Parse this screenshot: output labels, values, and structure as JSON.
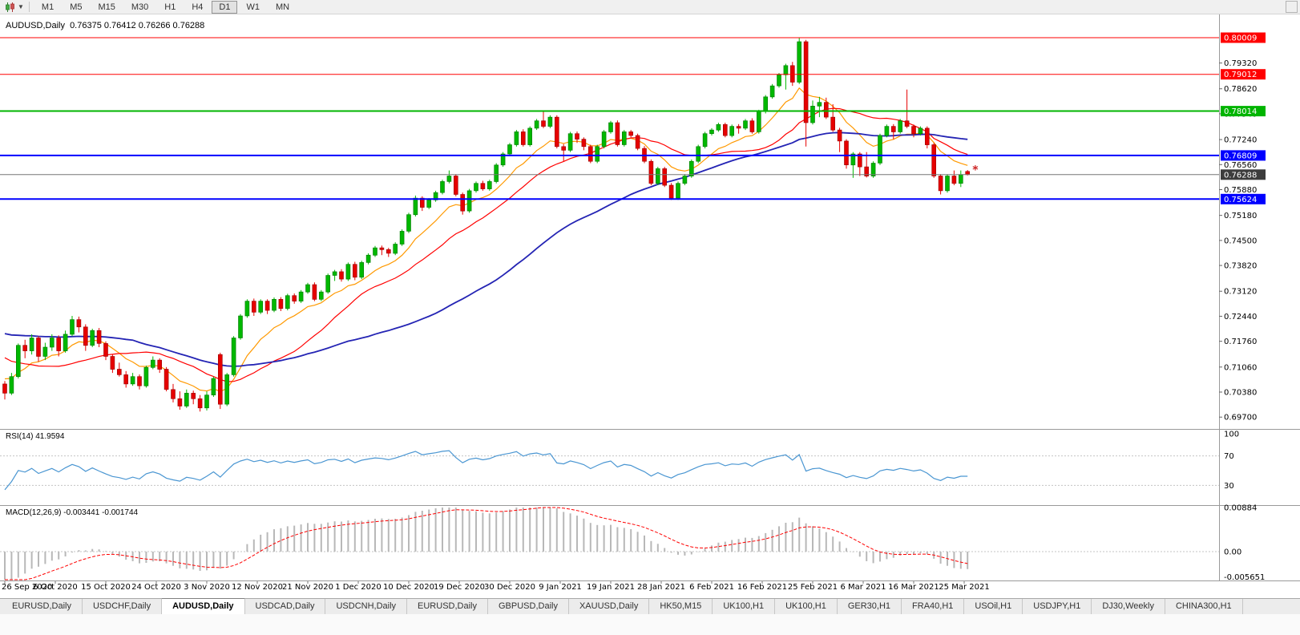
{
  "toolbar": {
    "timeframes": [
      "M1",
      "M5",
      "M15",
      "M30",
      "H1",
      "H4",
      "D1",
      "W1",
      "MN"
    ],
    "active_timeframe": "D1"
  },
  "chart_header": {
    "title": "AUDUSD,Daily  0.76375 0.76412 0.76266 0.76288"
  },
  "indicator_labels": {
    "rsi": "RSI(14) 41.9594",
    "macd": "MACD(12,26,9) -0.003441 -0.001744"
  },
  "tabs": {
    "items": [
      "EURUSD,Daily",
      "USDCHF,Daily",
      "AUDUSD,Daily",
      "USDCAD,Daily",
      "USDCNH,Daily",
      "EURUSD,Daily",
      "GBPUSD,Daily",
      "XAUUSD,Daily",
      "HK50,M15",
      "UK100,H1",
      "UK100,H1",
      "GER30,H1",
      "FRA40,H1",
      "USOil,H1",
      "USDJPY,H1",
      "DJ30,Weekly",
      "CHINA300,H1"
    ],
    "active_index": 2
  },
  "chart_data": {
    "type": "candlestick",
    "symbol": "AUDUSD",
    "timeframe": "Daily",
    "ylim": [
      0.694,
      0.8064
    ],
    "y_tick_labels": [
      "0.79320",
      "0.78620",
      "0.77940",
      "0.77240",
      "0.76560",
      "0.75880",
      "0.75180",
      "0.74500",
      "0.73820",
      "0.73120",
      "0.72440",
      "0.71760",
      "0.71060",
      "0.70380",
      "0.69700"
    ],
    "x_tick_labels": [
      "26 Sep 2020",
      "6 Oct 2020",
      "15 Oct 2020",
      "24 Oct 2020",
      "3 Nov 2020",
      "12 Nov 2020",
      "21 Nov 2020",
      "1 Dec 2020",
      "10 Dec 2020",
      "19 Dec 2020",
      "30 Dec 2020",
      "9 Jan 2021",
      "19 Jan 2021",
      "28 Jan 2021",
      "6 Feb 2021",
      "16 Feb 2021",
      "25 Feb 2021",
      "6 Mar 2021",
      "16 Mar 2021",
      "25 Mar 2021"
    ],
    "horizontal_lines": [
      {
        "price": "0.80009",
        "color": "#ff0000",
        "width": 1
      },
      {
        "price": "0.79012",
        "color": "#ff0000",
        "width": 1
      },
      {
        "price": "0.78014",
        "color": "#00b400",
        "width": 2
      },
      {
        "price": "0.76809",
        "color": "#0000ff",
        "width": 2
      },
      {
        "price": "0.75624",
        "color": "#0000ff",
        "width": 2
      }
    ],
    "current_price": "0.76288",
    "current_price_label_bg": "#3c3c3c",
    "marker": {
      "text": "*",
      "color": "#cc2222",
      "price": 0.764
    },
    "bull_color": "#00b800",
    "bear_color": "#e60000",
    "moving_averages": [
      {
        "type": "ema",
        "period": 10,
        "color": "#ff9900"
      },
      {
        "type": "sma",
        "period": 20,
        "color": "#ff0000"
      },
      {
        "type": "sma",
        "period": 50,
        "color": "#2424b4"
      }
    ],
    "rsi": {
      "period": 14,
      "levels": [
        "100",
        "70",
        "30"
      ],
      "line_color": "#4a96d2"
    },
    "macd": {
      "fast": 12,
      "slow": 26,
      "signal": 9,
      "y_tick_labels": [
        "0.00884",
        "0.00",
        "-0.005651"
      ],
      "hist_color": "#b8b8b8",
      "signal_color": "#ff0000"
    },
    "prehistory_closes": [
      0.7368,
      0.7372,
      0.7345,
      0.7315,
      0.7332,
      0.7302,
      0.7282,
      0.7296,
      0.7312,
      0.7288,
      0.7262,
      0.7272,
      0.7242,
      0.7216,
      0.7232,
      0.7202,
      0.7172,
      0.7186,
      0.7156,
      0.7132,
      0.7146,
      0.7112,
      0.7086,
      0.7102,
      0.7072,
      0.7052,
      0.7066,
      0.7042,
      0.7056,
      0.7048
    ],
    "ohlc": [
      [
        0.706,
        0.7068,
        0.7018,
        0.7035
      ],
      [
        0.7035,
        0.709,
        0.703,
        0.708
      ],
      [
        0.708,
        0.717,
        0.7075,
        0.7165
      ],
      [
        0.7165,
        0.718,
        0.713,
        0.715
      ],
      [
        0.715,
        0.7195,
        0.714,
        0.7185
      ],
      [
        0.7185,
        0.719,
        0.712,
        0.7135
      ],
      [
        0.7135,
        0.7172,
        0.7125,
        0.716
      ],
      [
        0.716,
        0.7195,
        0.715,
        0.7185
      ],
      [
        0.7185,
        0.7192,
        0.7135,
        0.715
      ],
      [
        0.715,
        0.7205,
        0.7145,
        0.7195
      ],
      [
        0.7195,
        0.7245,
        0.719,
        0.7235
      ],
      [
        0.7235,
        0.7243,
        0.72,
        0.7215
      ],
      [
        0.7215,
        0.7222,
        0.715,
        0.7165
      ],
      [
        0.7165,
        0.721,
        0.716,
        0.7205
      ],
      [
        0.7205,
        0.7212,
        0.716,
        0.717
      ],
      [
        0.717,
        0.7176,
        0.7125,
        0.7135
      ],
      [
        0.7135,
        0.714,
        0.709,
        0.71
      ],
      [
        0.71,
        0.7118,
        0.708,
        0.7085
      ],
      [
        0.7085,
        0.7095,
        0.705,
        0.706
      ],
      [
        0.706,
        0.709,
        0.7055,
        0.708
      ],
      [
        0.708,
        0.7086,
        0.7045,
        0.7055
      ],
      [
        0.7055,
        0.711,
        0.705,
        0.7105
      ],
      [
        0.7105,
        0.7135,
        0.71,
        0.7125
      ],
      [
        0.7125,
        0.713,
        0.709,
        0.71
      ],
      [
        0.71,
        0.7106,
        0.704,
        0.7045
      ],
      [
        0.7045,
        0.706,
        0.701,
        0.702
      ],
      [
        0.702,
        0.704,
        0.699,
        0.7
      ],
      [
        0.7,
        0.7045,
        0.6995,
        0.7035
      ],
      [
        0.7035,
        0.7042,
        0.7005,
        0.702
      ],
      [
        0.702,
        0.703,
        0.6985,
        0.6995
      ],
      [
        0.6995,
        0.704,
        0.6988,
        0.703
      ],
      [
        0.703,
        0.708,
        0.7025,
        0.7075
      ],
      [
        0.714,
        0.7145,
        0.6992,
        0.7005
      ],
      [
        0.7005,
        0.709,
        0.7,
        0.7085
      ],
      [
        0.7085,
        0.719,
        0.708,
        0.7185
      ],
      [
        0.7185,
        0.725,
        0.718,
        0.7245
      ],
      [
        0.7245,
        0.729,
        0.724,
        0.7285
      ],
      [
        0.7285,
        0.7292,
        0.7245,
        0.7255
      ],
      [
        0.7255,
        0.729,
        0.725,
        0.7285
      ],
      [
        0.7285,
        0.729,
        0.725,
        0.726
      ],
      [
        0.726,
        0.7295,
        0.7255,
        0.729
      ],
      [
        0.729,
        0.7296,
        0.7258,
        0.7265
      ],
      [
        0.7265,
        0.7305,
        0.726,
        0.73
      ],
      [
        0.73,
        0.7306,
        0.7278,
        0.7285
      ],
      [
        0.7285,
        0.7315,
        0.728,
        0.731
      ],
      [
        0.731,
        0.7335,
        0.7305,
        0.733
      ],
      [
        0.733,
        0.7336,
        0.7285,
        0.729
      ],
      [
        0.729,
        0.7315,
        0.7285,
        0.731
      ],
      [
        0.731,
        0.736,
        0.7305,
        0.7355
      ],
      [
        0.7355,
        0.737,
        0.734,
        0.7365
      ],
      [
        0.7365,
        0.7372,
        0.7338,
        0.7345
      ],
      [
        0.7345,
        0.739,
        0.734,
        0.7385
      ],
      [
        0.7385,
        0.7392,
        0.7342,
        0.735
      ],
      [
        0.735,
        0.7395,
        0.7345,
        0.739
      ],
      [
        0.739,
        0.7415,
        0.7385,
        0.741
      ],
      [
        0.741,
        0.7435,
        0.7405,
        0.743
      ],
      [
        0.743,
        0.7436,
        0.741,
        0.7425
      ],
      [
        0.7425,
        0.743,
        0.7405,
        0.7415
      ],
      [
        0.7415,
        0.7445,
        0.741,
        0.744
      ],
      [
        0.744,
        0.748,
        0.7435,
        0.7475
      ],
      [
        0.7475,
        0.7525,
        0.747,
        0.752
      ],
      [
        0.752,
        0.7572,
        0.7515,
        0.7565
      ],
      [
        0.7565,
        0.757,
        0.753,
        0.754
      ],
      [
        0.754,
        0.7565,
        0.7535,
        0.756
      ],
      [
        0.756,
        0.7585,
        0.7555,
        0.758
      ],
      [
        0.758,
        0.7615,
        0.7575,
        0.761
      ],
      [
        0.761,
        0.764,
        0.7605,
        0.7625
      ],
      [
        0.7625,
        0.763,
        0.757,
        0.7575
      ],
      [
        0.7575,
        0.758,
        0.752,
        0.753
      ],
      [
        0.753,
        0.759,
        0.7525,
        0.7585
      ],
      [
        0.7585,
        0.761,
        0.758,
        0.7605
      ],
      [
        0.7605,
        0.7612,
        0.7585,
        0.759
      ],
      [
        0.759,
        0.7615,
        0.7585,
        0.761
      ],
      [
        0.761,
        0.766,
        0.7605,
        0.7655
      ],
      [
        0.7655,
        0.769,
        0.765,
        0.7685
      ],
      [
        0.7685,
        0.7715,
        0.768,
        0.771
      ],
      [
        0.771,
        0.775,
        0.7705,
        0.7745
      ],
      [
        0.7745,
        0.7752,
        0.7705,
        0.771
      ],
      [
        0.771,
        0.776,
        0.7705,
        0.7755
      ],
      [
        0.7755,
        0.778,
        0.775,
        0.7775
      ],
      [
        0.7775,
        0.78,
        0.7755,
        0.776
      ],
      [
        0.776,
        0.779,
        0.7755,
        0.7785
      ],
      [
        0.7785,
        0.779,
        0.77,
        0.7705
      ],
      [
        0.7705,
        0.7712,
        0.7665,
        0.7695
      ],
      [
        0.7695,
        0.7745,
        0.769,
        0.774
      ],
      [
        0.774,
        0.7746,
        0.7715,
        0.7725
      ],
      [
        0.7725,
        0.773,
        0.7695,
        0.7705
      ],
      [
        0.7705,
        0.771,
        0.766,
        0.7665
      ],
      [
        0.7665,
        0.771,
        0.766,
        0.7705
      ],
      [
        0.7705,
        0.775,
        0.77,
        0.7745
      ],
      [
        0.7745,
        0.7775,
        0.774,
        0.777
      ],
      [
        0.777,
        0.7776,
        0.7705,
        0.771
      ],
      [
        0.771,
        0.775,
        0.7705,
        0.7745
      ],
      [
        0.7745,
        0.775,
        0.773,
        0.7735
      ],
      [
        0.7735,
        0.774,
        0.7695,
        0.77
      ],
      [
        0.77,
        0.7706,
        0.766,
        0.7665
      ],
      [
        0.7665,
        0.767,
        0.76,
        0.7605
      ],
      [
        0.7605,
        0.765,
        0.76,
        0.7645
      ],
      [
        0.7645,
        0.765,
        0.7595,
        0.76
      ],
      [
        0.76,
        0.7606,
        0.756,
        0.7565
      ],
      [
        0.7565,
        0.761,
        0.756,
        0.7605
      ],
      [
        0.7605,
        0.763,
        0.76,
        0.7625
      ],
      [
        0.7625,
        0.767,
        0.762,
        0.7665
      ],
      [
        0.7665,
        0.771,
        0.766,
        0.7705
      ],
      [
        0.7705,
        0.7745,
        0.77,
        0.774
      ],
      [
        0.774,
        0.7755,
        0.7735,
        0.775
      ],
      [
        0.775,
        0.777,
        0.7745,
        0.7765
      ],
      [
        0.7765,
        0.777,
        0.773,
        0.7735
      ],
      [
        0.7735,
        0.7765,
        0.773,
        0.776
      ],
      [
        0.776,
        0.7766,
        0.774,
        0.7755
      ],
      [
        0.7755,
        0.778,
        0.775,
        0.7775
      ],
      [
        0.7775,
        0.7782,
        0.774,
        0.7745
      ],
      [
        0.7745,
        0.7805,
        0.774,
        0.78
      ],
      [
        0.78,
        0.7845,
        0.7795,
        0.784
      ],
      [
        0.784,
        0.7875,
        0.7835,
        0.787
      ],
      [
        0.787,
        0.7905,
        0.7865,
        0.79
      ],
      [
        0.79,
        0.793,
        0.786,
        0.7925
      ],
      [
        0.7925,
        0.7935,
        0.787,
        0.788
      ],
      [
        0.788,
        0.8001,
        0.7875,
        0.799
      ],
      [
        0.799,
        0.7995,
        0.7705,
        0.777
      ],
      [
        0.777,
        0.783,
        0.7765,
        0.7815
      ],
      [
        0.7815,
        0.784,
        0.7785,
        0.7825
      ],
      [
        0.7825,
        0.7838,
        0.778,
        0.7785
      ],
      [
        0.7785,
        0.782,
        0.7745,
        0.775
      ],
      [
        0.775,
        0.7756,
        0.769,
        0.772
      ],
      [
        0.772,
        0.7725,
        0.7645,
        0.7655
      ],
      [
        0.7655,
        0.769,
        0.762,
        0.7685
      ],
      [
        0.7685,
        0.769,
        0.7625,
        0.765
      ],
      [
        0.765,
        0.769,
        0.7621,
        0.7625
      ],
      [
        0.7625,
        0.7665,
        0.762,
        0.766
      ],
      [
        0.766,
        0.774,
        0.7655,
        0.7735
      ],
      [
        0.7735,
        0.7765,
        0.773,
        0.776
      ],
      [
        0.776,
        0.7766,
        0.7725,
        0.7745
      ],
      [
        0.7745,
        0.778,
        0.774,
        0.7775
      ],
      [
        0.7775,
        0.786,
        0.7755,
        0.776
      ],
      [
        0.776,
        0.7765,
        0.773,
        0.774
      ],
      [
        0.774,
        0.776,
        0.7735,
        0.7755
      ],
      [
        0.7755,
        0.776,
        0.77,
        0.771
      ],
      [
        0.771,
        0.7715,
        0.762,
        0.7625
      ],
      [
        0.7625,
        0.763,
        0.7575,
        0.7585
      ],
      [
        0.7585,
        0.763,
        0.758,
        0.7625
      ],
      [
        0.7625,
        0.764,
        0.76,
        0.7605
      ],
      [
        0.7605,
        0.764,
        0.7595,
        0.7629
      ],
      [
        0.76375,
        0.76412,
        0.76266,
        0.76288
      ]
    ]
  }
}
